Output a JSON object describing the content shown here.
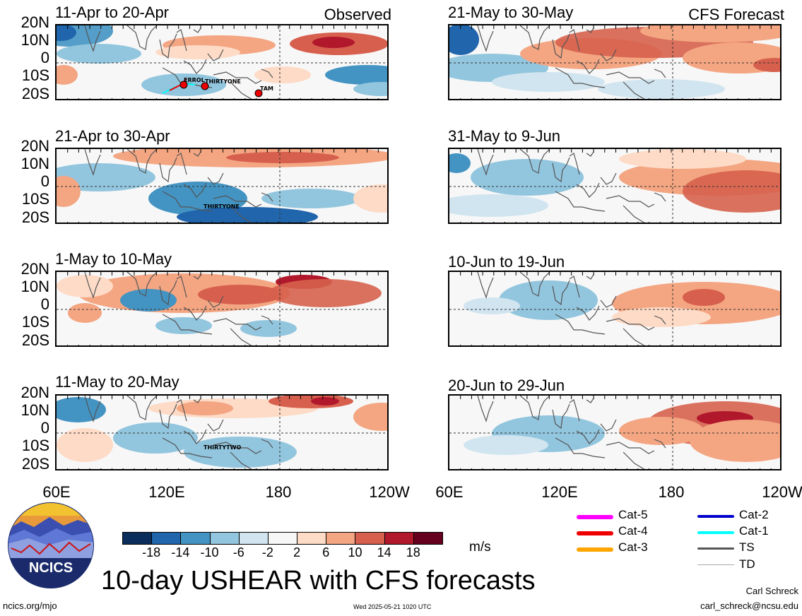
{
  "panels": [
    {
      "id": "p1",
      "title": "11-Apr to 20-Apr",
      "tag": "Observed",
      "storms": [
        {
          "name": "ERROL"
        },
        {
          "name": "THIRTYONE"
        },
        {
          "name": "TAM"
        }
      ]
    },
    {
      "id": "p2",
      "title": "21-May to 30-May",
      "tag": "CFS Forecast",
      "storms": []
    },
    {
      "id": "p3",
      "title": "21-Apr to 30-Apr",
      "tag": "",
      "storms": [
        {
          "name": "THIRTYONE"
        }
      ]
    },
    {
      "id": "p4",
      "title": "31-May to 9-Jun",
      "tag": "",
      "storms": []
    },
    {
      "id": "p5",
      "title": "1-May to 10-May",
      "tag": "",
      "storms": []
    },
    {
      "id": "p6",
      "title": "10-Jun to 19-Jun",
      "tag": "",
      "storms": []
    },
    {
      "id": "p7",
      "title": "11-May to 20-May",
      "tag": "",
      "storms": [
        {
          "name": "THIRTYTWO"
        }
      ]
    },
    {
      "id": "p8",
      "title": "20-Jun to 29-Jun",
      "tag": "",
      "storms": []
    }
  ],
  "lat_labels": [
    "20N",
    "10N",
    "0",
    "10S",
    "20S"
  ],
  "lon_labels": [
    "60E",
    "120E",
    "180",
    "120W"
  ],
  "colorbar": {
    "colors": [
      "#0b2d5c",
      "#2166ac",
      "#4393c3",
      "#92c5de",
      "#d1e5f0",
      "#f7f7f7",
      "#fddbc7",
      "#f4a582",
      "#d6604d",
      "#b2182b",
      "#67001f"
    ],
    "ticks": [
      "-18",
      "-14",
      "-10",
      "-6",
      "-2",
      "2",
      "6",
      "10",
      "14",
      "18"
    ],
    "unit": "m/s"
  },
  "storm_legend": [
    {
      "label": "Cat-5",
      "color": "#ff00ff"
    },
    {
      "label": "Cat-4",
      "color": "#ee0000"
    },
    {
      "label": "Cat-3",
      "color": "#ffa500"
    },
    {
      "label": "Cat-2",
      "color": "#0000cc"
    },
    {
      "label": "Cat-1",
      "color": "#00ffff"
    },
    {
      "label": "TS",
      "color": "#555555"
    },
    {
      "label": "TD",
      "color": "#aaaaaa"
    }
  ],
  "logo_text": "NCICS",
  "main_title": "10-day USHEAR with CFS forecasts",
  "footer": {
    "url": "ncics.org/mjo",
    "timestamp": "Wed 2025-05-21 1020 UTC",
    "author": "Carl Schreck",
    "email": "carl_schreck@ncsu.edu"
  }
}
